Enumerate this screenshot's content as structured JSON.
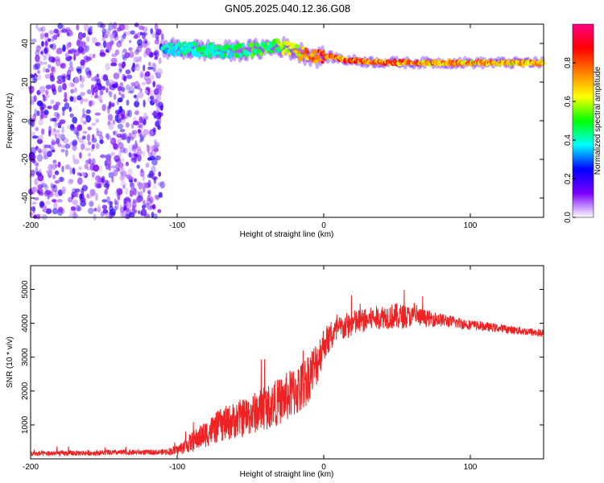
{
  "figure_title": "GN05.2025.040.12.36.G08",
  "chart_data": [
    {
      "type": "heatmap",
      "xlabel": "Height of straight line (km)",
      "ylabel": "Frequency (Hz)",
      "xlim": [
        -200,
        150
      ],
      "ylim": [
        -50,
        50
      ],
      "x_ticks": [
        -200,
        -100,
        0,
        100
      ],
      "y_ticks": [
        -40,
        -20,
        0,
        20,
        40
      ],
      "colorbar": {
        "label": "Normalized spectral amplitude",
        "range": [
          0,
          1
        ],
        "ticks": [
          0,
          0.2,
          0.4,
          0.6,
          0.8
        ],
        "tick_labels": [
          "0.0",
          "0.2",
          "0.4",
          "0.6",
          "0.8"
        ],
        "colormap": [
          "#ffffff",
          "#7a00ff",
          "#0000ff",
          "#00ffff",
          "#00ff00",
          "#ffff00",
          "#ff8000",
          "#ff0000",
          "#ff0080"
        ]
      },
      "noise_region": {
        "x": [
          -200,
          -110
        ],
        "y": [
          -50,
          50
        ],
        "amplitude": 0.15
      },
      "ridge": [
        {
          "x": -110,
          "y": 37.5,
          "amplitude": 0.4
        },
        {
          "x": -90,
          "y": 37,
          "amplitude": 0.45
        },
        {
          "x": -70,
          "y": 36,
          "amplitude": 0.45
        },
        {
          "x": -50,
          "y": 36.5,
          "amplitude": 0.5
        },
        {
          "x": -30,
          "y": 38.5,
          "amplitude": 0.55
        },
        {
          "x": -15,
          "y": 35,
          "amplitude": 0.75
        },
        {
          "x": -5,
          "y": 33,
          "amplitude": 0.85
        },
        {
          "x": 5,
          "y": 33,
          "amplitude": 0.85
        },
        {
          "x": 15,
          "y": 31.5,
          "amplitude": 0.85
        },
        {
          "x": 30,
          "y": 30.5,
          "amplitude": 0.85
        },
        {
          "x": 60,
          "y": 30,
          "amplitude": 0.8
        },
        {
          "x": 100,
          "y": 30,
          "amplitude": 0.75
        },
        {
          "x": 150,
          "y": 30,
          "amplitude": 0.75
        }
      ]
    },
    {
      "type": "line",
      "xlabel": "Height of straight line (km)",
      "ylabel": "SNR (10 * v/v)",
      "xlim": [
        -200,
        150
      ],
      "ylim": [
        0,
        5700
      ],
      "x_ticks": [
        -200,
        -100,
        0,
        100
      ],
      "y_ticks": [
        1000,
        2000,
        3000,
        4000,
        5000
      ],
      "series": [
        {
          "color": "#ee2222",
          "x": [
            -200,
            -150,
            -110,
            -100,
            -90,
            -70,
            -50,
            -30,
            -15,
            -5,
            0,
            5,
            10,
            20,
            30,
            40,
            50,
            60,
            80,
            100,
            120,
            150
          ],
          "y": [
            150,
            180,
            200,
            250,
            500,
            1000,
            1300,
            1700,
            2100,
            2800,
            3400,
            3600,
            3800,
            4000,
            4100,
            4200,
            4200,
            4200,
            4100,
            3950,
            3850,
            3700
          ],
          "noise": [
            80,
            80,
            80,
            150,
            300,
            500,
            600,
            700,
            800,
            700,
            500,
            450,
            400,
            400,
            350,
            350,
            400,
            300,
            200,
            150,
            120,
            120
          ]
        }
      ]
    }
  ]
}
